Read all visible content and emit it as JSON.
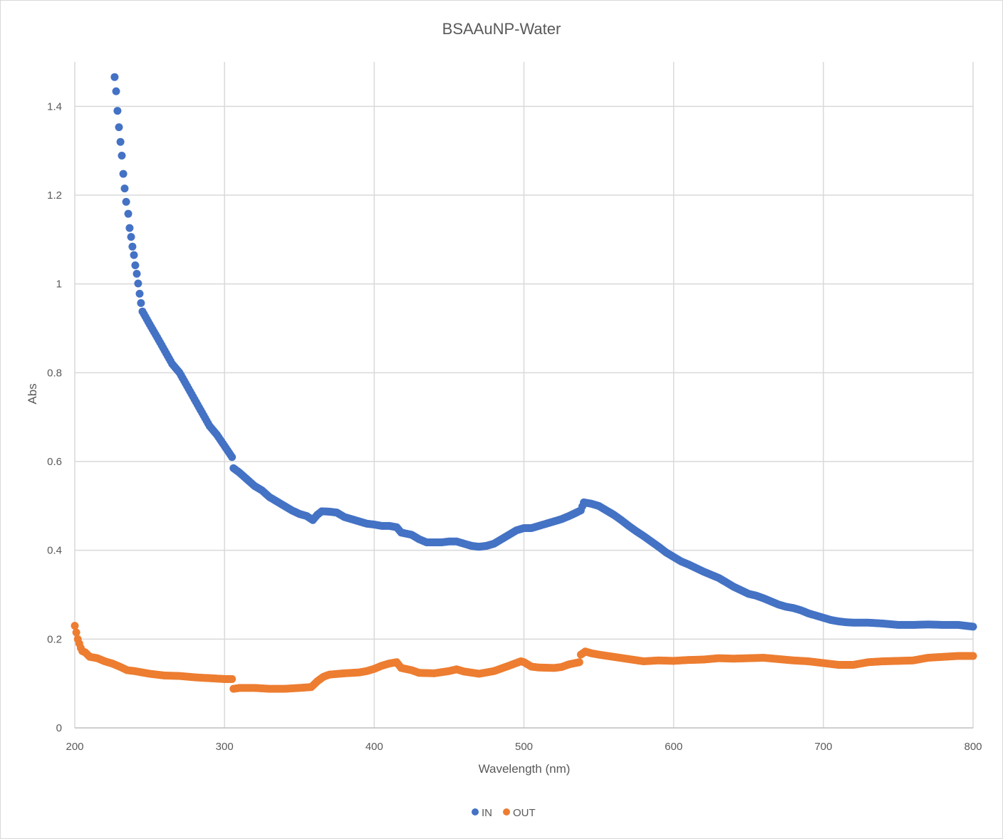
{
  "chart_data": {
    "type": "scatter",
    "title": "BSAAuNP-Water",
    "xlabel": "Wavelength (nm)",
    "ylabel": "Abs",
    "xlim": [
      200,
      800
    ],
    "ylim": [
      0,
      1.5
    ],
    "xticks": [
      "200",
      "300",
      "400",
      "500",
      "600",
      "700",
      "800"
    ],
    "yticks": [
      "0",
      "0.2",
      "0.4",
      "0.6",
      "0.8",
      "1",
      "1.2",
      "1.4"
    ],
    "grid": true,
    "legend_position": "bottom",
    "series": [
      {
        "name": "IN",
        "color": "#4472c4",
        "points": [
          [
            226.6,
            1.466
          ],
          [
            227.6,
            1.434
          ],
          [
            228.5,
            1.39
          ],
          [
            229.5,
            1.353
          ],
          [
            230.5,
            1.32
          ],
          [
            231.4,
            1.289
          ],
          [
            232.4,
            1.248
          ],
          [
            233.3,
            1.215
          ],
          [
            234.3,
            1.185
          ],
          [
            235.7,
            1.158
          ],
          [
            236.6,
            1.126
          ],
          [
            237.6,
            1.106
          ],
          [
            238.5,
            1.084
          ],
          [
            239.5,
            1.065
          ],
          [
            240.4,
            1.042
          ],
          [
            241.4,
            1.023
          ],
          [
            242.3,
            1.001
          ],
          [
            243.3,
            0.978
          ],
          [
            244.2,
            0.957
          ],
          [
            245.2,
            0.938
          ],
          [
            250,
            0.909
          ],
          [
            255,
            0.88
          ],
          [
            260,
            0.85
          ],
          [
            265,
            0.82
          ],
          [
            270,
            0.8
          ],
          [
            275,
            0.77
          ],
          [
            280,
            0.74
          ],
          [
            285,
            0.71
          ],
          [
            290,
            0.68
          ],
          [
            295,
            0.66
          ],
          [
            300,
            0.635
          ],
          [
            305,
            0.61
          ],
          [
            306,
            0.585
          ],
          [
            310,
            0.575
          ],
          [
            315,
            0.56
          ],
          [
            320,
            0.545
          ],
          [
            325,
            0.535
          ],
          [
            330,
            0.52
          ],
          [
            335,
            0.51
          ],
          [
            340,
            0.5
          ],
          [
            345,
            0.49
          ],
          [
            350,
            0.482
          ],
          [
            355,
            0.477
          ],
          [
            359,
            0.468
          ],
          [
            362,
            0.48
          ],
          [
            365,
            0.488
          ],
          [
            370,
            0.487
          ],
          [
            375,
            0.485
          ],
          [
            380,
            0.475
          ],
          [
            385,
            0.47
          ],
          [
            390,
            0.465
          ],
          [
            395,
            0.46
          ],
          [
            400,
            0.458
          ],
          [
            405,
            0.455
          ],
          [
            410,
            0.455
          ],
          [
            415,
            0.452
          ],
          [
            418,
            0.44
          ],
          [
            425,
            0.435
          ],
          [
            430,
            0.425
          ],
          [
            435,
            0.418
          ],
          [
            440,
            0.418
          ],
          [
            445,
            0.418
          ],
          [
            450,
            0.42
          ],
          [
            455,
            0.42
          ],
          [
            460,
            0.415
          ],
          [
            465,
            0.41
          ],
          [
            470,
            0.408
          ],
          [
            475,
            0.41
          ],
          [
            480,
            0.415
          ],
          [
            485,
            0.425
          ],
          [
            490,
            0.435
          ],
          [
            495,
            0.445
          ],
          [
            500,
            0.45
          ],
          [
            505,
            0.45
          ],
          [
            510,
            0.455
          ],
          [
            515,
            0.46
          ],
          [
            520,
            0.465
          ],
          [
            525,
            0.47
          ],
          [
            530,
            0.477
          ],
          [
            535,
            0.485
          ],
          [
            538,
            0.49
          ],
          [
            540,
            0.508
          ],
          [
            545,
            0.505
          ],
          [
            550,
            0.5
          ],
          [
            555,
            0.49
          ],
          [
            560,
            0.48
          ],
          [
            565,
            0.468
          ],
          [
            570,
            0.455
          ],
          [
            575,
            0.443
          ],
          [
            580,
            0.432
          ],
          [
            585,
            0.42
          ],
          [
            590,
            0.408
          ],
          [
            595,
            0.395
          ],
          [
            600,
            0.385
          ],
          [
            605,
            0.375
          ],
          [
            610,
            0.368
          ],
          [
            615,
            0.36
          ],
          [
            620,
            0.352
          ],
          [
            625,
            0.345
          ],
          [
            630,
            0.338
          ],
          [
            635,
            0.328
          ],
          [
            640,
            0.318
          ],
          [
            645,
            0.31
          ],
          [
            650,
            0.302
          ],
          [
            655,
            0.298
          ],
          [
            660,
            0.292
          ],
          [
            665,
            0.285
          ],
          [
            670,
            0.278
          ],
          [
            675,
            0.273
          ],
          [
            680,
            0.27
          ],
          [
            685,
            0.265
          ],
          [
            690,
            0.258
          ],
          [
            695,
            0.253
          ],
          [
            700,
            0.248
          ],
          [
            705,
            0.243
          ],
          [
            710,
            0.24
          ],
          [
            715,
            0.238
          ],
          [
            720,
            0.237
          ],
          [
            730,
            0.237
          ],
          [
            740,
            0.235
          ],
          [
            750,
            0.232
          ],
          [
            760,
            0.232
          ],
          [
            770,
            0.233
          ],
          [
            780,
            0.232
          ],
          [
            790,
            0.232
          ],
          [
            800,
            0.228
          ]
        ]
      },
      {
        "name": "OUT",
        "color": "#ed7d31",
        "points": [
          [
            200,
            0.23
          ],
          [
            201,
            0.215
          ],
          [
            202,
            0.2
          ],
          [
            203,
            0.19
          ],
          [
            204,
            0.18
          ],
          [
            205,
            0.173
          ],
          [
            207,
            0.17
          ],
          [
            210,
            0.16
          ],
          [
            215,
            0.157
          ],
          [
            220,
            0.15
          ],
          [
            225,
            0.145
          ],
          [
            230,
            0.138
          ],
          [
            235,
            0.13
          ],
          [
            240,
            0.128
          ],
          [
            245,
            0.125
          ],
          [
            250,
            0.122
          ],
          [
            255,
            0.12
          ],
          [
            260,
            0.118
          ],
          [
            270,
            0.117
          ],
          [
            280,
            0.114
          ],
          [
            290,
            0.112
          ],
          [
            300,
            0.11
          ],
          [
            305,
            0.11
          ],
          [
            306,
            0.088
          ],
          [
            310,
            0.09
          ],
          [
            320,
            0.09
          ],
          [
            330,
            0.088
          ],
          [
            340,
            0.088
          ],
          [
            350,
            0.09
          ],
          [
            358,
            0.092
          ],
          [
            362,
            0.105
          ],
          [
            366,
            0.115
          ],
          [
            370,
            0.12
          ],
          [
            380,
            0.123
          ],
          [
            390,
            0.125
          ],
          [
            395,
            0.128
          ],
          [
            400,
            0.133
          ],
          [
            405,
            0.14
          ],
          [
            410,
            0.145
          ],
          [
            415,
            0.148
          ],
          [
            418,
            0.135
          ],
          [
            425,
            0.13
          ],
          [
            430,
            0.124
          ],
          [
            440,
            0.123
          ],
          [
            450,
            0.128
          ],
          [
            455,
            0.132
          ],
          [
            460,
            0.127
          ],
          [
            470,
            0.122
          ],
          [
            480,
            0.128
          ],
          [
            490,
            0.14
          ],
          [
            498,
            0.15
          ],
          [
            500,
            0.148
          ],
          [
            505,
            0.138
          ],
          [
            510,
            0.136
          ],
          [
            520,
            0.135
          ],
          [
            525,
            0.137
          ],
          [
            530,
            0.143
          ],
          [
            537,
            0.148
          ],
          [
            538,
            0.165
          ],
          [
            541,
            0.172
          ],
          [
            545,
            0.168
          ],
          [
            550,
            0.165
          ],
          [
            560,
            0.16
          ],
          [
            570,
            0.155
          ],
          [
            580,
            0.15
          ],
          [
            590,
            0.152
          ],
          [
            600,
            0.151
          ],
          [
            610,
            0.153
          ],
          [
            620,
            0.154
          ],
          [
            630,
            0.157
          ],
          [
            640,
            0.156
          ],
          [
            650,
            0.157
          ],
          [
            660,
            0.158
          ],
          [
            670,
            0.155
          ],
          [
            680,
            0.152
          ],
          [
            690,
            0.15
          ],
          [
            700,
            0.146
          ],
          [
            710,
            0.142
          ],
          [
            720,
            0.142
          ],
          [
            730,
            0.148
          ],
          [
            740,
            0.15
          ],
          [
            750,
            0.151
          ],
          [
            760,
            0.152
          ],
          [
            770,
            0.158
          ],
          [
            780,
            0.16
          ],
          [
            790,
            0.162
          ],
          [
            800,
            0.162
          ]
        ]
      }
    ]
  }
}
